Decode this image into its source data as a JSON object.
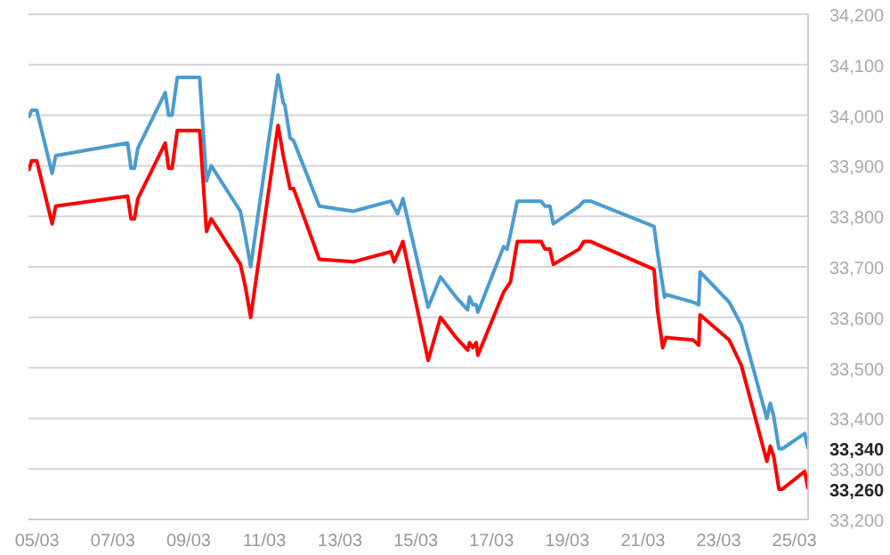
{
  "chart_data": {
    "type": "line",
    "xlim": [
      "--03-04T18:30",
      "--03-25T08:40"
    ],
    "ylim": [
      33200,
      34200
    ],
    "xticks": [
      {
        "value": "--03-05",
        "label": "05/03"
      },
      {
        "value": "--03-07",
        "label": "07/03"
      },
      {
        "value": "--03-09",
        "label": "09/03"
      },
      {
        "value": "--03-11",
        "label": "11/03"
      },
      {
        "value": "--03-13",
        "label": "13/03"
      },
      {
        "value": "--03-15",
        "label": "15/03"
      },
      {
        "value": "--03-17",
        "label": "17/03"
      },
      {
        "value": "--03-19",
        "label": "19/03"
      },
      {
        "value": "--03-21",
        "label": "21/03"
      },
      {
        "value": "--03-23",
        "label": "23/03"
      },
      {
        "value": "--03-25",
        "label": "25/03"
      }
    ],
    "yticks": [
      {
        "value": 33200,
        "label": "33,200"
      },
      {
        "value": 33260,
        "label": "33,260"
      },
      {
        "value": 33300,
        "label": "33,300"
      },
      {
        "value": 33340,
        "label": "33,340"
      },
      {
        "value": 33400,
        "label": "33,400"
      },
      {
        "value": 33500,
        "label": "33,500"
      },
      {
        "value": 33600,
        "label": "33,600"
      },
      {
        "value": 33700,
        "label": "33,700"
      },
      {
        "value": 33800,
        "label": "33,800"
      },
      {
        "value": 33900,
        "label": "33,900"
      },
      {
        "value": 34000,
        "label": "34,000"
      },
      {
        "value": 34100,
        "label": "34,100"
      },
      {
        "value": 34200,
        "label": "34,200"
      }
    ],
    "grid": "y",
    "legend": false,
    "marker": "none",
    "line_style": "solid",
    "series": [
      {
        "color": "#4a9bd0",
        "x": [
          "--03-04T18:30",
          "--03-04T20:30",
          "--03-04T23:45",
          "--03-05T09:30",
          "--03-05T11:45",
          "--03-07T09:20",
          "--03-07T11:30",
          "--03-07T13:40",
          "--03-07T15:50",
          "--03-08T09:10",
          "--03-08T11:20",
          "--03-08T13:30",
          "--03-08T16:50",
          "--03-09T07:00",
          "--03-09T11:20",
          "--03-09T14:20",
          "--03-10T08:50",
          "--03-10T12:00",
          "--03-10T15:20",
          "--03-11T08:40",
          "--03-11T12:00",
          "--03-11T13:00",
          "--03-11T16:20",
          "--03-11T18:30",
          "--03-12T10:50",
          "--03-13T08:20",
          "--03-14T08:10",
          "--03-14T12:30",
          "--03-14T15:50",
          "--03-15T07:50",
          "--03-15T15:40",
          "--03-16T01:30",
          "--03-16T08:50",
          "--03-16T10:00",
          "--03-16T12:10",
          "--03-16T14:20",
          "--03-16T15:20",
          "--03-17T07:40",
          "--03-17T09:50",
          "--03-17T12:00",
          "--03-17T16:20",
          "--03-18T07:30",
          "--03-18T09:50",
          "--03-18T13:00",
          "--03-18T15:10",
          "--03-19T07:30",
          "--03-19T10:30",
          "--03-19T14:50",
          "--03-21T07:00",
          "--03-21T09:10",
          "--03-21T13:40",
          "--03-21T14:40",
          "--03-22T07:50",
          "--03-22T11:20",
          "--03-22T12:10",
          "--03-23T06:40",
          "--03-23T14:20",
          "--03-24T06:30",
          "--03-24T08:40",
          "--03-24T10:50",
          "--03-24T14:10",
          "--03-24T16:20",
          "--03-25T06:30",
          "--03-25T08:40"
        ],
        "values": [
          33995,
          34010,
          34010,
          33885,
          33920,
          33945,
          33895,
          33895,
          33935,
          34045,
          34000,
          34000,
          34075,
          34075,
          33870,
          33900,
          33810,
          33760,
          33700,
          34080,
          34025,
          34020,
          33955,
          33950,
          33820,
          33810,
          33830,
          33805,
          33835,
          33620,
          33680,
          33640,
          33615,
          33640,
          33625,
          33625,
          33610,
          33740,
          33735,
          33765,
          33830,
          33830,
          33820,
          33820,
          33785,
          33820,
          33830,
          33830,
          33780,
          33730,
          33640,
          33645,
          33630,
          33625,
          33690,
          33630,
          33585,
          33400,
          33430,
          33405,
          33340,
          33340,
          33370,
          33340
        ]
      },
      {
        "color": "#ff0000",
        "x": [
          "--03-04T18:30",
          "--03-04T20:30",
          "--03-04T23:45",
          "--03-05T09:30",
          "--03-05T11:45",
          "--03-07T09:20",
          "--03-07T11:30",
          "--03-07T13:40",
          "--03-07T15:50",
          "--03-08T09:10",
          "--03-08T11:20",
          "--03-08T13:30",
          "--03-08T16:50",
          "--03-09T07:00",
          "--03-09T11:20",
          "--03-09T14:20",
          "--03-10T08:50",
          "--03-10T12:00",
          "--03-10T15:20",
          "--03-11T08:40",
          "--03-11T12:00",
          "--03-11T16:20",
          "--03-11T18:30",
          "--03-12T10:50",
          "--03-13T08:20",
          "--03-14T08:10",
          "--03-14T10:20",
          "--03-14T15:50",
          "--03-15T07:50",
          "--03-15T15:40",
          "--03-16T01:30",
          "--03-16T08:50",
          "--03-16T10:00",
          "--03-16T12:10",
          "--03-16T14:20",
          "--03-16T15:20",
          "--03-17T07:40",
          "--03-17T12:00",
          "--03-17T16:20",
          "--03-18T07:30",
          "--03-18T09:50",
          "--03-18T13:00",
          "--03-18T15:10",
          "--03-19T07:30",
          "--03-19T10:30",
          "--03-19T14:50",
          "--03-21T07:00",
          "--03-21T09:10",
          "--03-21T12:30",
          "--03-21T14:40",
          "--03-22T07:50",
          "--03-22T11:20",
          "--03-22T12:10",
          "--03-23T06:40",
          "--03-23T14:20",
          "--03-24T06:30",
          "--03-24T08:40",
          "--03-24T10:50",
          "--03-24T14:10",
          "--03-24T16:20",
          "--03-25T06:30",
          "--03-25T08:40"
        ],
        "values": [
          33890,
          33910,
          33910,
          33785,
          33820,
          33840,
          33795,
          33795,
          33835,
          33945,
          33895,
          33895,
          33970,
          33970,
          33770,
          33795,
          33705,
          33660,
          33600,
          33980,
          33920,
          33855,
          33855,
          33715,
          33710,
          33730,
          33710,
          33750,
          33515,
          33600,
          33560,
          33535,
          33550,
          33540,
          33550,
          33525,
          33650,
          33670,
          33750,
          33750,
          33735,
          33735,
          33705,
          33735,
          33750,
          33750,
          33695,
          33615,
          33540,
          33560,
          33555,
          33545,
          33605,
          33555,
          33505,
          33315,
          33345,
          33325,
          33260,
          33260,
          33295,
          33260
        ]
      }
    ]
  }
}
